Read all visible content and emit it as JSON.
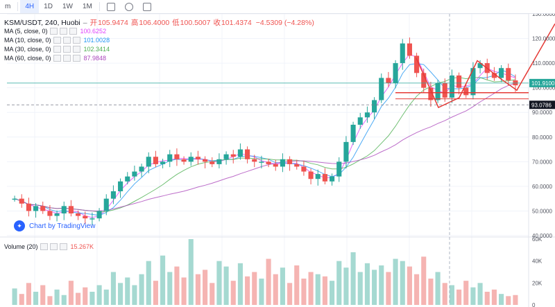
{
  "toolbar": {
    "items": [
      "m",
      "4H",
      "1D",
      "1W",
      "1M"
    ],
    "active": "4H"
  },
  "header": {
    "symbol": "KSM/USDT, 240, Huobi",
    "open_label": "开",
    "open": "105.9474",
    "high_label": "高",
    "high": "106.4000",
    "low_label": "低",
    "low": "100.5007",
    "close_label": "收",
    "close": "101.4374",
    "change": "−4.5309 (−4.28%)"
  },
  "ma": [
    {
      "label": "MA (5, close, 0)",
      "value": "100.6252",
      "color": "#e040fb"
    },
    {
      "label": "MA (10, close, 0)",
      "value": "101.0028",
      "color": "#2196f3"
    },
    {
      "label": "MA (30, close, 0)",
      "value": "102.3414",
      "color": "#4caf50"
    },
    {
      "label": "MA (60, close, 0)",
      "value": "87.9848",
      "color": "#ab47bc"
    }
  ],
  "volume_legend": {
    "label": "Volume (20)",
    "value": "15.267K"
  },
  "badge": "Chart by TradingView",
  "colors": {
    "up": "#26a69a",
    "down": "#ef5350",
    "grid": "#f0f3fa",
    "price_line": "#26a69a"
  },
  "chart_data": {
    "type": "candlestick",
    "y_ticks": [
      "130.0000",
      "120.0000",
      "110.0000",
      "100.0000",
      "90.0000",
      "80.0000",
      "70.0000",
      "60.0000",
      "50.0000",
      "40.0000"
    ],
    "y_range": [
      40,
      130
    ],
    "price_tags": [
      {
        "value": "101.9100",
        "color": "#26a69a"
      },
      {
        "value": "93.0786",
        "color": "#131722"
      }
    ],
    "volume_ticks": [
      "60K",
      "40K",
      "20K",
      "0"
    ],
    "close_path": [
      55,
      53,
      50,
      52,
      50,
      48,
      49,
      52,
      49,
      48,
      47,
      47,
      50,
      55,
      58,
      62,
      64,
      66,
      68,
      72,
      69,
      70,
      73,
      71,
      70,
      72,
      71,
      70,
      69,
      71,
      73,
      72,
      75,
      71,
      70,
      70,
      69,
      68,
      71,
      69,
      68,
      66,
      63,
      65,
      62,
      64,
      70,
      78,
      85,
      88,
      90,
      95,
      104,
      102,
      110,
      118,
      113,
      106,
      100,
      95,
      102,
      96,
      105,
      100,
      97,
      108,
      110,
      106,
      104,
      108,
      103,
      101
    ],
    "volume_values": [
      15,
      10,
      20,
      12,
      18,
      8,
      14,
      9,
      22,
      11,
      16,
      12,
      18,
      14,
      30,
      20,
      25,
      18,
      28,
      40,
      22,
      45,
      30,
      35,
      25,
      60,
      28,
      32,
      20,
      40,
      35,
      22,
      38,
      26,
      30,
      24,
      42,
      28,
      34,
      20,
      36,
      24,
      30,
      28,
      26,
      22,
      40,
      34,
      48,
      30,
      38,
      32,
      36,
      30,
      42,
      40,
      35,
      28,
      44,
      24,
      30,
      20,
      18,
      14,
      22,
      16,
      20,
      12,
      14,
      10,
      8,
      9
    ]
  }
}
